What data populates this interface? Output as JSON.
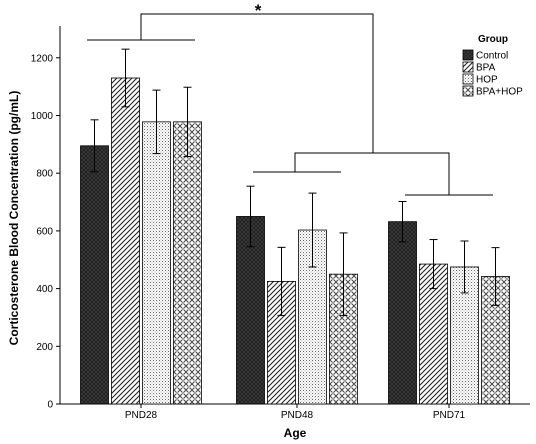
{
  "chart_data": {
    "type": "bar",
    "xlabel": "Age",
    "ylabel": "Corticosterone Blood Concentration (pg/mL)",
    "ylim": [
      0,
      1300
    ],
    "yticks": [
      0,
      200,
      400,
      600,
      800,
      1000,
      1200
    ],
    "grid": false,
    "legend_title": "Group",
    "legend_position": "top-right",
    "categories": [
      "PND28",
      "PND48",
      "PND71"
    ],
    "series": [
      {
        "name": "Control",
        "values": [
          895,
          650,
          632
        ],
        "errors": [
          90,
          105,
          70
        ],
        "pattern": "solid-dark"
      },
      {
        "name": "BPA",
        "values": [
          1130,
          425,
          485
        ],
        "errors": [
          100,
          118,
          85
        ],
        "pattern": "diagonal"
      },
      {
        "name": "HOP",
        "values": [
          978,
          603,
          475
        ],
        "errors": [
          110,
          128,
          90
        ],
        "pattern": "dots"
      },
      {
        "name": "BPA+HOP",
        "values": [
          978,
          450,
          442
        ],
        "errors": [
          120,
          143,
          100
        ],
        "pattern": "crosshatch"
      }
    ],
    "annotations": [
      {
        "text": "*",
        "type": "significance-bracket"
      }
    ]
  }
}
